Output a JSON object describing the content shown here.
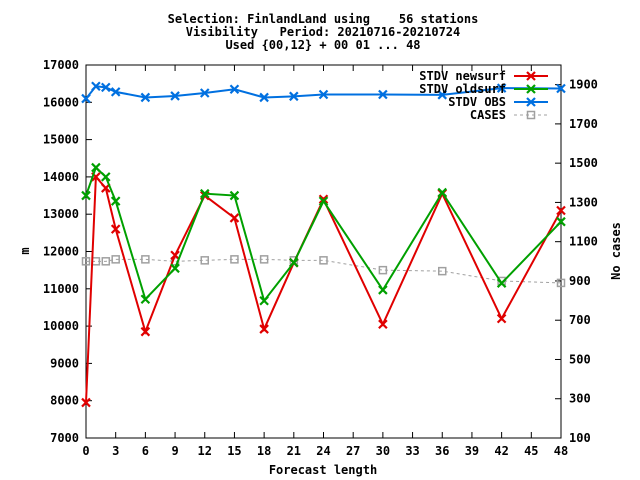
{
  "chart_data": {
    "type": "line",
    "title_lines": [
      "Selection: FinlandLand using    56 stations",
      "Visibility   Period: 20210716-20210724",
      "Used {00,12} + 00 01 ... 48"
    ],
    "xlabel": "Forecast length",
    "ylabel": "m",
    "y2label": "No cases",
    "xlim": [
      0,
      48
    ],
    "ylim": [
      7000,
      17000
    ],
    "y2lim": [
      100,
      2000
    ],
    "xticks": [
      0,
      3,
      6,
      9,
      12,
      15,
      18,
      21,
      24,
      27,
      30,
      33,
      36,
      39,
      42,
      45,
      48
    ],
    "yticks": [
      7000,
      8000,
      9000,
      10000,
      11000,
      12000,
      13000,
      14000,
      15000,
      16000,
      17000
    ],
    "y2ticks": [
      100,
      300,
      500,
      700,
      900,
      1100,
      1300,
      1500,
      1700,
      1900
    ],
    "grid": false,
    "legend_position": "top-right",
    "series": [
      {
        "name": "STDV newsurf",
        "color": "#e00000",
        "marker": "x",
        "axis": "left",
        "x": [
          0,
          1,
          2,
          3,
          6,
          9,
          12,
          15,
          18,
          21,
          24,
          30,
          36,
          42,
          48
        ],
        "y": [
          7950,
          14000,
          13700,
          12600,
          9850,
          11900,
          13500,
          12900,
          9920,
          11700,
          13400,
          10050,
          13550,
          10200,
          13100
        ]
      },
      {
        "name": "STDV oldsurf",
        "color": "#00a000",
        "marker": "x",
        "axis": "left",
        "x": [
          0,
          1,
          2,
          3,
          6,
          9,
          12,
          15,
          18,
          21,
          24,
          30,
          36,
          42,
          48
        ],
        "y": [
          13500,
          14250,
          14000,
          13350,
          10720,
          11550,
          13550,
          13500,
          10680,
          11700,
          13350,
          10970,
          13580,
          11150,
          12800
        ]
      },
      {
        "name": "STDV OBS",
        "color": "#0070e0",
        "marker": "x",
        "axis": "left",
        "x": [
          0,
          1,
          2,
          3,
          6,
          9,
          12,
          15,
          18,
          21,
          24,
          30,
          36,
          42,
          48
        ],
        "y": [
          16100,
          16430,
          16400,
          16280,
          16130,
          16170,
          16250,
          16350,
          16130,
          16160,
          16210,
          16210,
          16200,
          16380,
          16370
        ]
      },
      {
        "name": "CASES",
        "color": "#a0a0a0",
        "marker": "square",
        "dashed": true,
        "axis": "right",
        "x": [
          0,
          1,
          2,
          3,
          6,
          9,
          12,
          15,
          18,
          21,
          24,
          30,
          36,
          42,
          48
        ],
        "y": [
          1000,
          1000,
          1000,
          1010,
          1010,
          1000,
          1005,
          1010,
          1010,
          1005,
          1005,
          955,
          950,
          900,
          890
        ]
      }
    ]
  }
}
